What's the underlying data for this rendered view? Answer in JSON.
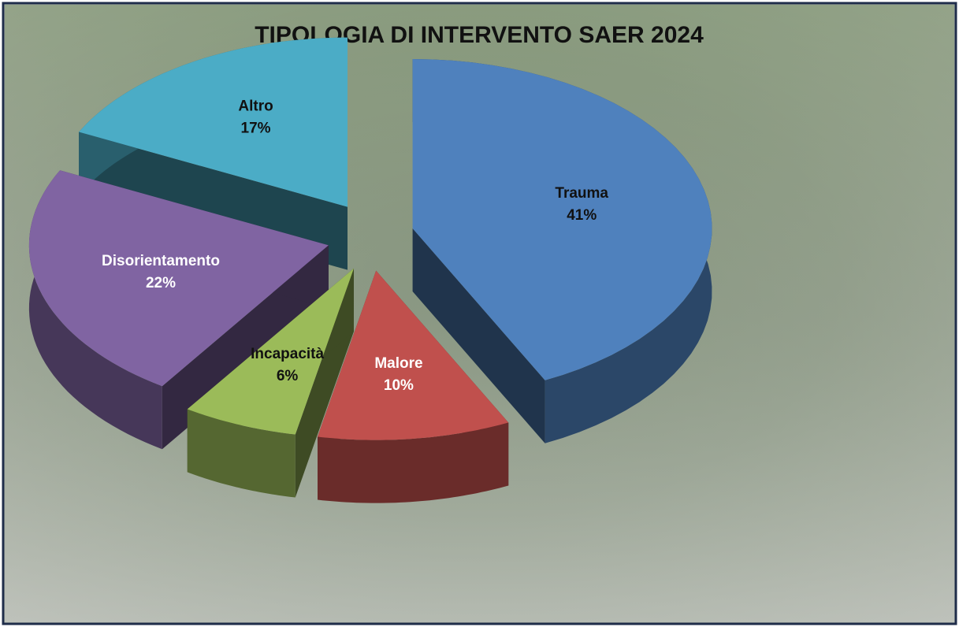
{
  "chart_data": {
    "type": "pie",
    "title": "TIPOLOGIA DI INTERVENTO SAER 2024",
    "categories": [
      "Trauma",
      "Malore",
      "Incapacità",
      "Disorientamento",
      "Altro"
    ],
    "values": [
      41,
      10,
      6,
      22,
      17
    ],
    "value_labels": [
      "41%",
      "10%",
      "6%",
      "22%",
      "17%"
    ],
    "colors": [
      "#4f81bd",
      "#c0504d",
      "#9bbb59",
      "#8064a2",
      "#4bacc6"
    ]
  }
}
